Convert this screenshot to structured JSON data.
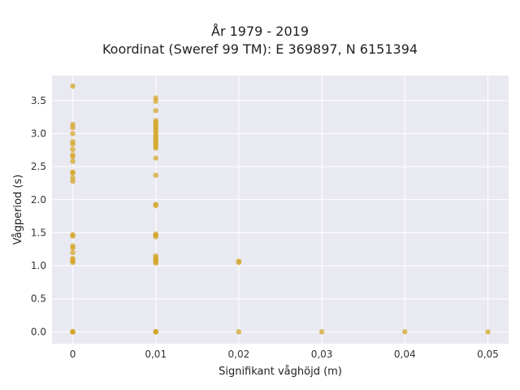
{
  "chart_data": {
    "type": "scatter",
    "title": "År 1979 - 2019",
    "subtitle": "Koordinat (Sweref 99 TM): E 369897, N 6151394",
    "xlabel": "Signifikant våghöjd (m)",
    "ylabel": "Vågperiod (s)",
    "xlim": [
      -0.0025,
      0.0525
    ],
    "ylim": [
      -0.18,
      3.88
    ],
    "xticks": [
      0,
      0.01,
      0.02,
      0.03,
      0.04,
      0.05
    ],
    "xtick_labels": [
      "0",
      "0,01",
      "0,02",
      "0,03",
      "0,04",
      "0,05"
    ],
    "yticks": [
      0,
      0.5,
      1,
      1.5,
      2,
      2.5,
      3,
      3.5
    ],
    "ytick_labels": [
      "0.0",
      "0.5",
      "1.0",
      "1.5",
      "2.0",
      "2.5",
      "3.0",
      "3.5"
    ],
    "grid": true,
    "legend": "none",
    "marker_color": "#d4a52a",
    "background_color": "#e9e9f1",
    "series": [
      {
        "x": [
          0,
          0,
          0,
          0,
          0,
          0,
          0,
          0,
          0,
          0,
          0,
          0,
          0,
          0,
          0,
          0,
          0,
          0,
          0,
          0,
          0,
          0,
          0,
          0,
          0,
          0,
          0,
          0,
          0,
          0,
          0.01,
          0.01,
          0.01,
          0.01,
          0.01,
          0.01,
          0.01,
          0.01,
          0.01,
          0.01,
          0.01,
          0.01,
          0.01,
          0.01,
          0.01,
          0.01,
          0.01,
          0.01,
          0.01,
          0.01,
          0.01,
          0.01,
          0.01,
          0.01,
          0.01,
          0.01,
          0.01,
          0.01,
          0.01,
          0.01,
          0.01,
          0.01,
          0.01,
          0.01,
          0.01,
          0.01,
          0.02,
          0.02,
          0.02,
          0.03,
          0.04,
          0.05
        ],
        "y": [
          3.72,
          3.14,
          3.09,
          3.0,
          2.88,
          2.84,
          2.76,
          2.68,
          2.65,
          2.58,
          2.42,
          2.4,
          2.33,
          2.28,
          1.47,
          1.45,
          1.3,
          1.27,
          1.2,
          1.11,
          1.09,
          1.07,
          1.05,
          0.0,
          0.0,
          0.0,
          0.0,
          0.0,
          0.0,
          0.0,
          3.54,
          3.49,
          3.35,
          3.2,
          3.17,
          3.14,
          3.11,
          3.08,
          3.05,
          3.02,
          2.98,
          2.95,
          2.92,
          2.9,
          2.87,
          2.84,
          2.81,
          2.78,
          2.63,
          2.37,
          1.93,
          1.91,
          1.48,
          1.46,
          1.44,
          1.15,
          1.12,
          1.1,
          1.08,
          1.06,
          1.04,
          0.0,
          0.0,
          0.0,
          0.0,
          0.0,
          1.07,
          1.05,
          0.0,
          0.0,
          0.0,
          0.0
        ]
      }
    ]
  }
}
